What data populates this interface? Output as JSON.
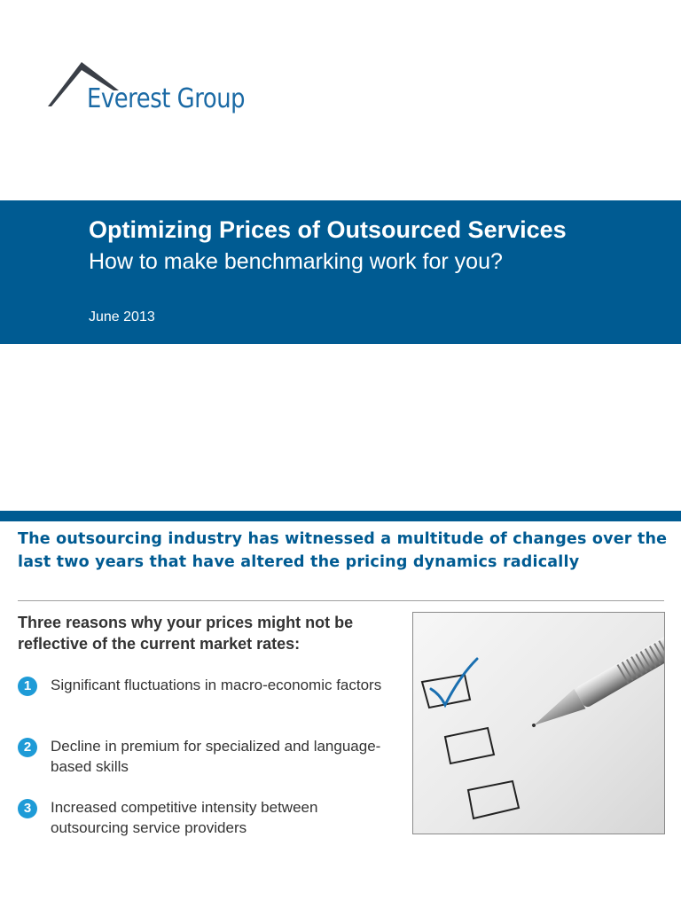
{
  "logo": {
    "company_name": "Everest Group",
    "mark_icon": "mountain-peak-icon",
    "brand_color": "#1b6aa5"
  },
  "banner": {
    "title": "Optimizing Prices of Outsourced Services",
    "subtitle": "How to make benchmarking work for you?",
    "date": "June 2013",
    "background_color": "#005b92"
  },
  "headline": "The outsourcing industry has witnessed a multitude of changes over the last two years that have altered the pricing dynamics radically",
  "intro": "Three reasons why your prices might not be reflective of the current market rates:",
  "reasons": [
    {
      "number": "1",
      "text": "Significant fluctuations in macro-economic factors"
    },
    {
      "number": "2",
      "text": "Decline in premium for specialized and language-based skills"
    },
    {
      "number": "3",
      "text": "Increased competitive intensity between outsourcing service providers"
    }
  ],
  "illustration": {
    "subject": "checklist-with-pen",
    "checkboxes": [
      true,
      false,
      false
    ]
  },
  "colors": {
    "accent_blue": "#005b92",
    "bullet_blue": "#1e9bd7",
    "check_blue": "#1a6fb0"
  }
}
